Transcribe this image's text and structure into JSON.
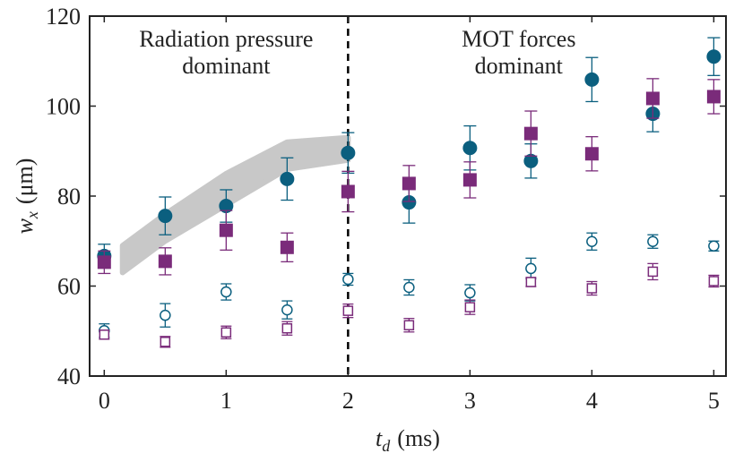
{
  "chart_data": {
    "type": "scatter",
    "xlabel": {
      "main": "t",
      "sub": "d",
      "unit": "(ms)"
    },
    "ylabel": {
      "main": "w",
      "sub": "x",
      "unit": "(μm)"
    },
    "xlim": [
      -0.12,
      5.1
    ],
    "ylim": [
      40,
      120
    ],
    "xticks": [
      0,
      1,
      2,
      3,
      4,
      5
    ],
    "yticks": [
      40,
      60,
      80,
      100,
      120
    ],
    "x": [
      0,
      0.5,
      1,
      1.5,
      2,
      2.5,
      3,
      3.5,
      4,
      4.5,
      5
    ],
    "series": [
      {
        "color": "#0b5f7f",
        "marker": "circle",
        "filled": true,
        "values": [
          66.7,
          75.6,
          77.8,
          83.8,
          89.6,
          78.6,
          90.7,
          87.8,
          105.9,
          98.3,
          111
        ],
        "errors": [
          2.6,
          4.2,
          3.6,
          4.7,
          4.5,
          4.6,
          4.9,
          3.8,
          4.9,
          4,
          4.2
        ]
      },
      {
        "color": "#7a2b7a",
        "marker": "square",
        "filled": true,
        "values": [
          65.3,
          65.5,
          72.4,
          68.6,
          81,
          82.8,
          83.6,
          93.9,
          89.4,
          101.7,
          102.1
        ],
        "errors": [
          2.5,
          3,
          4.4,
          3.2,
          4.5,
          4,
          4,
          5,
          3.8,
          4.4,
          3.8
        ]
      },
      {
        "color": "#0b5f7f",
        "marker": "circle",
        "filled": false,
        "values": [
          50.1,
          53.5,
          58.7,
          54.7,
          61.5,
          59.7,
          58.5,
          63.9,
          69.9,
          69.9,
          68.9
        ],
        "errors": [
          1.5,
          2.6,
          1.8,
          2,
          1.3,
          1.7,
          1.8,
          2.3,
          1.9,
          1.5,
          1.1
        ]
      },
      {
        "color": "#7a2b7a",
        "marker": "square",
        "filled": false,
        "values": [
          49.2,
          47.6,
          49.7,
          50.6,
          54.5,
          51.3,
          55.3,
          60.9,
          59.5,
          63.2,
          61.1
        ],
        "errors": [
          1,
          1.2,
          1.4,
          1.5,
          1.5,
          1.5,
          1.6,
          1,
          1.5,
          1.8,
          1.3
        ]
      }
    ],
    "band": {
      "color": "#c8c8c8",
      "x": [
        0.15,
        0.5,
        1,
        1.5,
        2
      ],
      "lower": [
        63,
        70,
        78,
        86,
        88
      ],
      "upper": [
        69,
        76,
        85,
        92,
        93
      ]
    },
    "vline": 2,
    "annotations": [
      {
        "x": 1,
        "lines": [
          "Radiation pressure",
          "dominant"
        ]
      },
      {
        "x": 3.4,
        "lines": [
          "MOT forces",
          "dominant"
        ]
      }
    ]
  }
}
